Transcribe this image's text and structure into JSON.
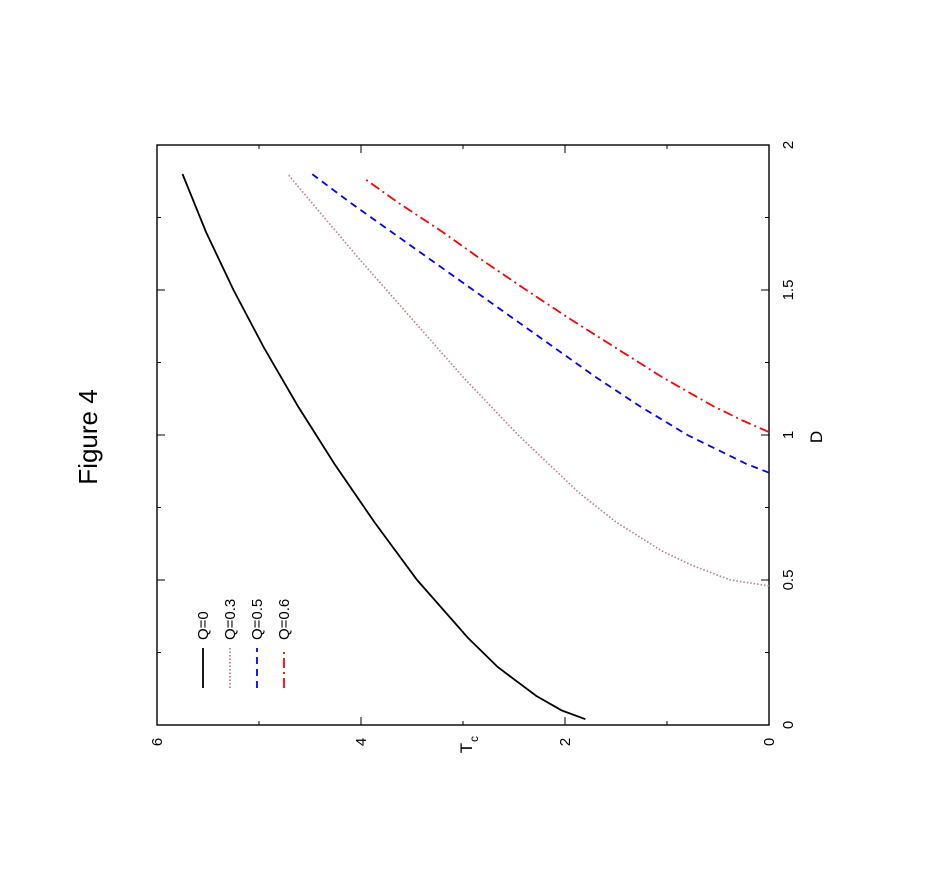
{
  "figure_title": "Figure 4",
  "chart_data": {
    "type": "line",
    "orientation": "rotated-90-ccw",
    "xlabel": "D",
    "ylabel": "T",
    "ylabel_subscript": "c",
    "xlim": [
      0,
      2
    ],
    "ylim": [
      0,
      6
    ],
    "xticks": [
      "0",
      "0.5",
      "1",
      "1.5",
      "2"
    ],
    "yticks": [
      "0",
      "2",
      "4",
      "6"
    ],
    "legend_position": "top-left",
    "series": [
      {
        "name": "Q=0",
        "color": "#000000",
        "dash": "solid",
        "points": [
          [
            0.02,
            1.8
          ],
          [
            0.05,
            2.03
          ],
          [
            0.1,
            2.28
          ],
          [
            0.2,
            2.66
          ],
          [
            0.3,
            2.95
          ],
          [
            0.5,
            3.45
          ],
          [
            0.7,
            3.87
          ],
          [
            0.9,
            4.26
          ],
          [
            1.1,
            4.62
          ],
          [
            1.3,
            4.95
          ],
          [
            1.5,
            5.25
          ],
          [
            1.7,
            5.52
          ],
          [
            1.9,
            5.75
          ]
        ]
      },
      {
        "name": "Q=0.3",
        "color": "#b27f7f",
        "dash": "dotted",
        "points": [
          [
            0.48,
            0.0
          ],
          [
            0.5,
            0.38
          ],
          [
            0.55,
            0.75
          ],
          [
            0.6,
            1.05
          ],
          [
            0.7,
            1.5
          ],
          [
            0.8,
            1.86
          ],
          [
            1.0,
            2.46
          ],
          [
            1.2,
            3.0
          ],
          [
            1.4,
            3.5
          ],
          [
            1.6,
            4.0
          ],
          [
            1.8,
            4.48
          ],
          [
            1.9,
            4.72
          ]
        ]
      },
      {
        "name": "Q=0.5",
        "color": "#0000ff",
        "dash": "dashed",
        "points": [
          [
            0.87,
            0.0
          ],
          [
            0.9,
            0.22
          ],
          [
            1.0,
            0.8
          ],
          [
            1.1,
            1.27
          ],
          [
            1.2,
            1.7
          ],
          [
            1.3,
            2.1
          ],
          [
            1.4,
            2.5
          ],
          [
            1.5,
            2.9
          ],
          [
            1.6,
            3.3
          ],
          [
            1.7,
            3.7
          ],
          [
            1.8,
            4.1
          ],
          [
            1.9,
            4.48
          ]
        ]
      },
      {
        "name": "Q=0.6",
        "color": "#ff0000",
        "dash": "dash-dot",
        "points": [
          [
            1.01,
            0.0
          ],
          [
            1.05,
            0.26
          ],
          [
            1.1,
            0.55
          ],
          [
            1.2,
            1.05
          ],
          [
            1.3,
            1.5
          ],
          [
            1.4,
            1.95
          ],
          [
            1.5,
            2.38
          ],
          [
            1.6,
            2.8
          ],
          [
            1.7,
            3.2
          ],
          [
            1.8,
            3.63
          ],
          [
            1.88,
            3.95
          ]
        ]
      }
    ]
  }
}
